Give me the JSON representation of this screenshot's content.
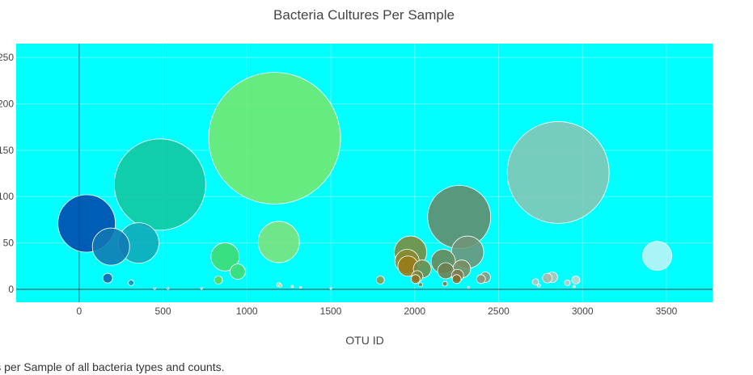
{
  "chart_data": {
    "type": "scatter",
    "title": "Bacteria Cultures Per Sample",
    "xlabel": "OTU ID",
    "ylabel": "",
    "xlim": [
      -375,
      3775
    ],
    "ylim": [
      -14,
      265
    ],
    "x_ticks": [
      0,
      500,
      1000,
      1500,
      2000,
      2500,
      3000,
      3500
    ],
    "y_ticks": [
      0,
      50,
      100,
      150,
      200,
      250
    ],
    "grid": true,
    "legend": "none",
    "plot_bg": "#00ffff",
    "points": [
      {
        "x": 45,
        "y": 71,
        "size": 71,
        "color": "#0047ab"
      },
      {
        "x": 190,
        "y": 46,
        "size": 46,
        "color": "#1177b3"
      },
      {
        "x": 355,
        "y": 50,
        "size": 50,
        "color": "#10a8b8"
      },
      {
        "x": 482,
        "y": 113,
        "size": 113,
        "color": "#12c79f"
      },
      {
        "x": 870,
        "y": 35,
        "size": 35,
        "color": "#40dc70"
      },
      {
        "x": 945,
        "y": 19,
        "size": 19,
        "color": "#40dc70"
      },
      {
        "x": 830,
        "y": 10,
        "size": 10,
        "color": "#58d850"
      },
      {
        "x": 1165,
        "y": 163,
        "size": 163,
        "color": "#73e86e"
      },
      {
        "x": 1190,
        "y": 51,
        "size": 51,
        "color": "#7fe27a"
      },
      {
        "x": 170,
        "y": 12,
        "size": 12,
        "color": "#1565a8"
      },
      {
        "x": 310,
        "y": 7,
        "size": 7,
        "color": "#1a8fb0"
      },
      {
        "x": 1795,
        "y": 10,
        "size": 10,
        "color": "#8c9a4c"
      },
      {
        "x": 1975,
        "y": 40,
        "size": 40,
        "color": "#7a8a3a"
      },
      {
        "x": 1955,
        "y": 30,
        "size": 30,
        "color": "#8a8a30"
      },
      {
        "x": 1960,
        "y": 25,
        "size": 25,
        "color": "#9a7a18"
      },
      {
        "x": 2045,
        "y": 22,
        "size": 22,
        "color": "#6f8a4a"
      },
      {
        "x": 2015,
        "y": 14,
        "size": 14,
        "color": "#7d8340"
      },
      {
        "x": 2005,
        "y": 11,
        "size": 11,
        "color": "#8a7220"
      },
      {
        "x": 2170,
        "y": 30,
        "size": 30,
        "color": "#6c8656"
      },
      {
        "x": 2185,
        "y": 20,
        "size": 20,
        "color": "#708050"
      },
      {
        "x": 2255,
        "y": 15,
        "size": 15,
        "color": "#7a7a48"
      },
      {
        "x": 2250,
        "y": 11,
        "size": 11,
        "color": "#806e30"
      },
      {
        "x": 2265,
        "y": 78,
        "size": 78,
        "color": "#648a6a"
      },
      {
        "x": 2315,
        "y": 40,
        "size": 40,
        "color": "#6e947a"
      },
      {
        "x": 2280,
        "y": 22,
        "size": 22,
        "color": "#7a8c62"
      },
      {
        "x": 2420,
        "y": 13,
        "size": 13,
        "color": "#8a9a7e"
      },
      {
        "x": 2395,
        "y": 11,
        "size": 11,
        "color": "#8e9278"
      },
      {
        "x": 2855,
        "y": 126,
        "size": 126,
        "color": "#86c6b4"
      },
      {
        "x": 2820,
        "y": 13,
        "size": 13,
        "color": "#b0c6b8"
      },
      {
        "x": 2790,
        "y": 12,
        "size": 12,
        "color": "#a8b8a8"
      },
      {
        "x": 2720,
        "y": 8,
        "size": 8,
        "color": "#b4c8bc"
      },
      {
        "x": 2960,
        "y": 10,
        "size": 10,
        "color": "#c0d8d0"
      },
      {
        "x": 2910,
        "y": 7,
        "size": 7,
        "color": "#b8ccc4"
      },
      {
        "x": 3445,
        "y": 36,
        "size": 36,
        "color": "#bff4f7"
      },
      {
        "x": 1190,
        "y": 5,
        "size": 5,
        "color": "#90e07a"
      },
      {
        "x": 1200,
        "y": 4,
        "size": 4,
        "color": "#98e080"
      },
      {
        "x": 1270,
        "y": 3,
        "size": 3,
        "color": "#a0e08a"
      },
      {
        "x": 1320,
        "y": 2,
        "size": 2,
        "color": "#a0e08a"
      },
      {
        "x": 1500,
        "y": 1,
        "size": 2,
        "color": "#a8e4a0"
      },
      {
        "x": 2035,
        "y": 5,
        "size": 5,
        "color": "#7a7a40"
      },
      {
        "x": 2180,
        "y": 6,
        "size": 6,
        "color": "#7a7a48"
      },
      {
        "x": 2320,
        "y": 2,
        "size": 2,
        "color": "#90a080"
      },
      {
        "x": 2740,
        "y": 4,
        "size": 4,
        "color": "#b8ccc0"
      },
      {
        "x": 2950,
        "y": 3,
        "size": 3,
        "color": "#c0d4cc"
      },
      {
        "x": 450,
        "y": 1,
        "size": 2,
        "color": "#20b0b0"
      },
      {
        "x": 530,
        "y": 1,
        "size": 2,
        "color": "#20c0a0"
      },
      {
        "x": 730,
        "y": 1,
        "size": 2,
        "color": "#40d070"
      }
    ]
  },
  "caption": "ltures per Sample of all bacteria types and counts."
}
